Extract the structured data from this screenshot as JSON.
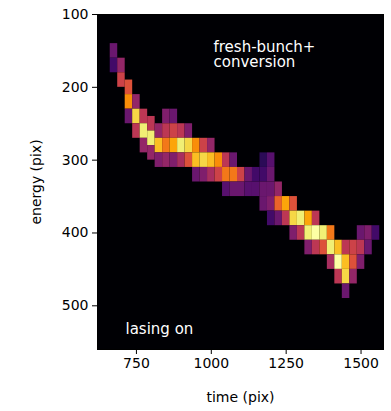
{
  "chart_data": {
    "type": "heatmap",
    "xlabel": "time (pix)",
    "ylabel": "energy (pix)",
    "xlim": [
      620,
      1575
    ],
    "ylim": [
      560,
      100
    ],
    "xticks": [
      750,
      1000,
      1250,
      1500
    ],
    "yticks": [
      100,
      200,
      300,
      400,
      500
    ],
    "color": "inferno",
    "color_range": [
      0,
      1
    ],
    "annotations": [
      "fresh-bunch+\nconversion",
      "lasing on"
    ],
    "cell_width": 25,
    "cell_height": 20,
    "cells": [
      [
        675,
        150,
        0.3
      ],
      [
        675,
        170,
        0.2
      ],
      [
        700,
        170,
        0.4
      ],
      [
        700,
        190,
        0.55
      ],
      [
        725,
        200,
        0.6
      ],
      [
        725,
        220,
        0.75
      ],
      [
        725,
        240,
        0.3
      ],
      [
        750,
        220,
        0.4
      ],
      [
        750,
        240,
        0.9
      ],
      [
        750,
        260,
        0.5
      ],
      [
        775,
        240,
        0.5
      ],
      [
        775,
        260,
        0.95
      ],
      [
        775,
        280,
        0.4
      ],
      [
        800,
        250,
        0.5
      ],
      [
        800,
        270,
        0.95
      ],
      [
        800,
        290,
        0.4
      ],
      [
        825,
        260,
        0.4
      ],
      [
        825,
        280,
        0.85
      ],
      [
        825,
        300,
        0.35
      ],
      [
        850,
        240,
        0.35
      ],
      [
        850,
        260,
        0.5
      ],
      [
        850,
        280,
        0.7
      ],
      [
        850,
        300,
        0.4
      ],
      [
        875,
        240,
        0.3
      ],
      [
        875,
        260,
        0.55
      ],
      [
        875,
        280,
        0.8
      ],
      [
        875,
        300,
        0.35
      ],
      [
        900,
        260,
        0.5
      ],
      [
        900,
        280,
        0.95
      ],
      [
        900,
        300,
        0.45
      ],
      [
        925,
        260,
        0.35
      ],
      [
        925,
        280,
        0.9
      ],
      [
        925,
        300,
        0.6
      ],
      [
        950,
        280,
        0.75
      ],
      [
        950,
        300,
        0.85
      ],
      [
        950,
        320,
        0.3
      ],
      [
        975,
        280,
        0.55
      ],
      [
        975,
        300,
        0.9
      ],
      [
        975,
        320,
        0.35
      ],
      [
        1000,
        280,
        0.4
      ],
      [
        1000,
        300,
        0.85
      ],
      [
        1000,
        320,
        0.45
      ],
      [
        1025,
        300,
        0.75
      ],
      [
        1025,
        320,
        0.55
      ],
      [
        1050,
        300,
        0.5
      ],
      [
        1050,
        320,
        0.7
      ],
      [
        1050,
        340,
        0.25
      ],
      [
        1075,
        300,
        0.3
      ],
      [
        1075,
        320,
        0.7
      ],
      [
        1075,
        340,
        0.3
      ],
      [
        1100,
        320,
        0.55
      ],
      [
        1100,
        340,
        0.3
      ],
      [
        1125,
        320,
        0.3
      ],
      [
        1125,
        340,
        0.25
      ],
      [
        1150,
        320,
        0.2
      ],
      [
        1150,
        340,
        0.25
      ],
      [
        1175,
        300,
        0.15
      ],
      [
        1175,
        320,
        0.2
      ],
      [
        1175,
        340,
        0.3
      ],
      [
        1175,
        360,
        0.3
      ],
      [
        1200,
        300,
        0.25
      ],
      [
        1200,
        320,
        0.3
      ],
      [
        1200,
        340,
        0.3
      ],
      [
        1200,
        360,
        0.35
      ],
      [
        1200,
        380,
        0.2
      ],
      [
        1225,
        340,
        0.4
      ],
      [
        1225,
        360,
        0.65
      ],
      [
        1225,
        380,
        0.3
      ],
      [
        1250,
        360,
        0.8
      ],
      [
        1250,
        380,
        0.5
      ],
      [
        1275,
        360,
        0.6
      ],
      [
        1275,
        380,
        0.9
      ],
      [
        1275,
        400,
        0.35
      ],
      [
        1300,
        380,
        0.95
      ],
      [
        1300,
        400,
        0.5
      ],
      [
        1325,
        380,
        0.8
      ],
      [
        1325,
        400,
        0.95
      ],
      [
        1325,
        420,
        0.35
      ],
      [
        1350,
        380,
        0.5
      ],
      [
        1350,
        400,
        1.0
      ],
      [
        1350,
        420,
        0.5
      ],
      [
        1375,
        400,
        0.95
      ],
      [
        1375,
        420,
        0.6
      ],
      [
        1400,
        400,
        0.7
      ],
      [
        1400,
        420,
        0.95
      ],
      [
        1400,
        440,
        0.45
      ],
      [
        1425,
        420,
        0.85
      ],
      [
        1425,
        440,
        1.0
      ],
      [
        1425,
        460,
        0.5
      ],
      [
        1450,
        420,
        0.5
      ],
      [
        1450,
        440,
        0.85
      ],
      [
        1450,
        460,
        0.9
      ],
      [
        1450,
        480,
        0.3
      ],
      [
        1475,
        420,
        0.55
      ],
      [
        1475,
        440,
        0.6
      ],
      [
        1475,
        460,
        0.4
      ],
      [
        1500,
        400,
        0.3
      ],
      [
        1500,
        420,
        0.5
      ],
      [
        1500,
        440,
        0.35
      ],
      [
        1525,
        400,
        0.35
      ],
      [
        1525,
        420,
        0.3
      ],
      [
        1550,
        400,
        0.2
      ]
    ]
  }
}
